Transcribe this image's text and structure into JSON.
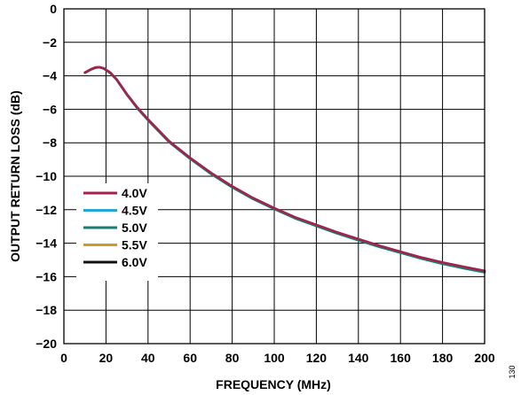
{
  "chart_data": {
    "type": "line",
    "xlabel": "FREQUENCY (MHz)",
    "ylabel": "OUTPUT RETURN LOSS (dB)",
    "xlim": [
      0,
      200
    ],
    "ylim": [
      -20,
      0
    ],
    "xticks": [
      0,
      20,
      40,
      60,
      80,
      100,
      120,
      140,
      160,
      180,
      200
    ],
    "yticks": [
      0,
      -2,
      -4,
      -6,
      -8,
      -10,
      -12,
      -14,
      -16,
      -18,
      -20
    ],
    "ytick_labels": [
      "0",
      "−2",
      "−4",
      "−6",
      "−8",
      "−10",
      "−12",
      "−14",
      "−16",
      "−18",
      "−20"
    ],
    "grid": true,
    "legend_position": "lower-left",
    "figure_id": "130",
    "series": [
      {
        "name": "4.0V",
        "color": "#a3224b",
        "x": [
          10,
          13,
          15,
          17,
          19,
          22,
          25,
          30,
          35,
          40,
          50,
          60,
          70,
          80,
          90,
          100,
          110,
          120,
          130,
          140,
          150,
          160,
          170,
          180,
          190,
          200
        ],
        "y": [
          -3.8,
          -3.6,
          -3.5,
          -3.48,
          -3.55,
          -3.8,
          -4.2,
          -5.1,
          -5.9,
          -6.6,
          -7.9,
          -8.9,
          -9.8,
          -10.6,
          -11.3,
          -11.9,
          -12.45,
          -12.9,
          -13.35,
          -13.75,
          -14.15,
          -14.5,
          -14.85,
          -15.15,
          -15.4,
          -15.65
        ]
      },
      {
        "name": "4.5V",
        "color": "#27a6d8",
        "x": [
          10,
          13,
          15,
          17,
          19,
          22,
          25,
          30,
          35,
          40,
          50,
          60,
          70,
          80,
          90,
          100,
          110,
          120,
          130,
          140,
          150,
          160,
          170,
          180,
          190,
          200
        ],
        "y": [
          -3.82,
          -3.62,
          -3.52,
          -3.5,
          -3.57,
          -3.83,
          -4.23,
          -5.14,
          -5.95,
          -6.65,
          -7.95,
          -8.95,
          -9.86,
          -10.66,
          -11.36,
          -11.96,
          -12.52,
          -12.97,
          -13.42,
          -13.82,
          -14.22,
          -14.57,
          -14.92,
          -15.23,
          -15.49,
          -15.74
        ]
      },
      {
        "name": "5.0V",
        "color": "#177e70",
        "x": [
          10,
          13,
          15,
          17,
          19,
          22,
          25,
          30,
          35,
          40,
          50,
          60,
          70,
          80,
          90,
          100,
          110,
          120,
          130,
          140,
          150,
          160,
          170,
          180,
          190,
          200
        ],
        "y": [
          -3.82,
          -3.62,
          -3.52,
          -3.5,
          -3.57,
          -3.83,
          -4.23,
          -5.14,
          -5.95,
          -6.65,
          -7.95,
          -8.95,
          -9.86,
          -10.66,
          -11.36,
          -11.96,
          -12.52,
          -12.97,
          -13.42,
          -13.82,
          -14.22,
          -14.57,
          -14.92,
          -15.23,
          -15.49,
          -15.74
        ]
      },
      {
        "name": "5.5V",
        "color": "#d09a2b",
        "x": [
          10,
          13,
          15,
          17,
          19,
          22,
          25,
          30,
          35,
          40,
          50,
          60,
          70,
          80,
          90,
          100,
          110,
          120,
          130,
          140,
          150,
          160,
          170,
          180,
          190,
          200
        ],
        "y": [
          -3.81,
          -3.61,
          -3.51,
          -3.49,
          -3.56,
          -3.81,
          -4.21,
          -5.12,
          -5.92,
          -6.62,
          -7.92,
          -8.92,
          -9.83,
          -10.63,
          -11.33,
          -11.93,
          -12.48,
          -12.93,
          -13.38,
          -13.78,
          -14.18,
          -14.53,
          -14.88,
          -15.19,
          -15.45,
          -15.7
        ]
      },
      {
        "name": "6.0V",
        "color": "#111111",
        "x": [
          10,
          13,
          15,
          17,
          19,
          22,
          25,
          30,
          35,
          40,
          50,
          60,
          70,
          80,
          90,
          100,
          110,
          120,
          130,
          140,
          150,
          160,
          170,
          180,
          190,
          200
        ],
        "y": [
          -3.81,
          -3.61,
          -3.51,
          -3.49,
          -3.56,
          -3.81,
          -4.21,
          -5.12,
          -5.92,
          -6.62,
          -7.92,
          -8.92,
          -9.83,
          -10.63,
          -11.33,
          -11.93,
          -12.48,
          -12.93,
          -13.38,
          -13.78,
          -14.18,
          -14.53,
          -14.88,
          -15.19,
          -15.45,
          -15.7
        ]
      }
    ]
  }
}
